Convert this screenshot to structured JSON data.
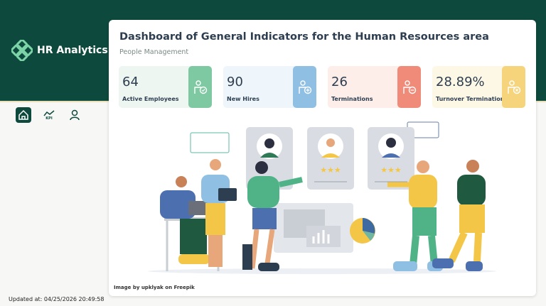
{
  "sidebar": {
    "brand": "HR Analytics",
    "nav": [
      {
        "label": "KPI"
      }
    ],
    "updated": "Updated at: 04/25/2026 20:49:58"
  },
  "header": {
    "title": "Dashboard of General Indicators for the Human Resources area",
    "subtitle": "People Management"
  },
  "kpis": [
    {
      "value": "64",
      "label": "Active Employees"
    },
    {
      "value": "90",
      "label": "New Hires"
    },
    {
      "value": "26",
      "label": "Terminations"
    },
    {
      "value": "28.89%",
      "label": "Turnover Terminations"
    }
  ],
  "credit": "Image by upklyak on Freepik"
}
